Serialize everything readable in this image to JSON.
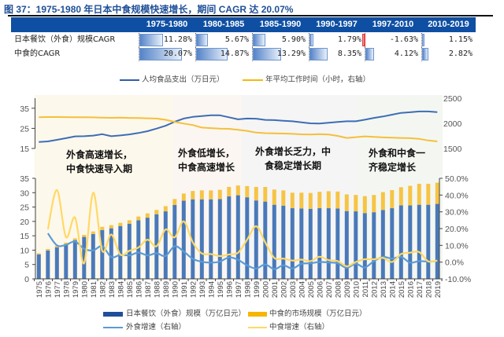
{
  "title": "图 37：1975-1980 年日本中食规模快速增长，期间 CAGR 达 20.07%",
  "table": {
    "columns": [
      "1975-1980",
      "1980-1985",
      "1985-1990",
      "1990-1997",
      "1997-2010",
      "2010-2019"
    ],
    "rows": [
      {
        "label": "日本餐饮（外食）规模CAGR",
        "values": [
          11.28,
          5.67,
          5.9,
          1.79,
          -1.63,
          1.15
        ],
        "display": [
          "11.28%",
          "5.67%",
          "5.90%",
          "1.79%",
          "-1.63%",
          "1.15%"
        ]
      },
      {
        "label": "中食的CAGR",
        "values": [
          20.07,
          14.87,
          13.29,
          8.35,
          4.12,
          2.82
        ],
        "display": [
          "20.07%",
          "14.87%",
          "13.29%",
          "8.35%",
          "4.12%",
          "2.82%"
        ]
      }
    ],
    "colors": {
      "header_bg": "#0f4fa3",
      "positive_bar": "#5584c8",
      "negative_bar": "#e8302f"
    }
  },
  "phases": [
    {
      "start_year": 1974.5,
      "end_year": 1989.8,
      "color": "#fdf8ec",
      "lines": [
        "外食高速增长，",
        "中食快速导入期"
      ]
    },
    {
      "start_year": 1989.8,
      "end_year": 1997.4,
      "color": "#fbf6f1",
      "lines": [
        "外食低增长，",
        "中食高速增长"
      ]
    },
    {
      "start_year": 1997.4,
      "end_year": 2010.0,
      "color": "#f5f5f5",
      "lines": [
        "外食增长乏力，中",
        "食稳定增长期"
      ]
    },
    {
      "start_year": 2010.0,
      "end_year": 2019.6,
      "color": "#f4f7f1",
      "lines": [
        "外食和中食一",
        "齐稳定增长"
      ]
    }
  ],
  "chart_data": [
    {
      "type": "line",
      "title": "",
      "legend": "top",
      "x": [
        1975,
        1976,
        1977,
        1978,
        1979,
        1980,
        1981,
        1982,
        1983,
        1984,
        1985,
        1986,
        1987,
        1988,
        1989,
        1990,
        1991,
        1992,
        1993,
        1994,
        1995,
        1996,
        1997,
        1998,
        1999,
        2000,
        2001,
        2002,
        2003,
        2004,
        2005,
        2006,
        2007,
        2008,
        2009,
        2010,
        2011,
        2012,
        2013,
        2014,
        2015,
        2016,
        2017,
        2018,
        2019
      ],
      "y_left": {
        "range": [
          15,
          40
        ],
        "ticks": [
          15,
          25,
          35
        ]
      },
      "y_right": {
        "range": [
          1500,
          2500
        ],
        "ticks": [
          1500,
          2000,
          2500
        ]
      },
      "grid": false,
      "series": [
        {
          "key": "food-expenditure",
          "name": "人均食品支出（万日元）",
          "axis": "left",
          "color": "#3d6db5",
          "values": [
            18.2,
            18.5,
            19.3,
            20.1,
            21.0,
            21.1,
            21.4,
            22.1,
            21.1,
            21.5,
            22.0,
            22.7,
            23.6,
            24.9,
            26.3,
            28.3,
            29.9,
            30.7,
            31.1,
            31.5,
            31.5,
            30.5,
            29.5,
            29.9,
            29.8,
            29.2,
            29.1,
            28.8,
            28.5,
            28.0,
            27.5,
            27.4,
            27.8,
            28.2,
            28.5,
            28.5,
            29.3,
            30.2,
            30.9,
            31.8,
            32.7,
            33.0,
            33.4,
            33.4,
            33.1
          ]
        },
        {
          "key": "working-hours",
          "name": "年平均工作时间（小时，右轴）",
          "axis": "right",
          "color": "#f5bf3c",
          "values": [
            2120,
            2125,
            2125,
            2123,
            2120,
            2122,
            2118,
            2112,
            2110,
            2113,
            2108,
            2105,
            2100,
            2095,
            2070,
            2030,
            1995,
            1965,
            1915,
            1905,
            1895,
            1890,
            1870,
            1850,
            1815,
            1805,
            1800,
            1797,
            1790,
            1782,
            1776,
            1786,
            1778,
            1750,
            1710,
            1725,
            1740,
            1730,
            1720,
            1714,
            1710,
            1705,
            1690,
            1660,
            1640
          ]
        }
      ]
    },
    {
      "type": "bar+line",
      "title": "",
      "legend": "bottom",
      "categories": [
        "1975",
        "1976",
        "1977",
        "1978",
        "1979",
        "1980",
        "1981",
        "1982",
        "1983",
        "1984",
        "1985",
        "1986",
        "1987",
        "1988",
        "1989",
        "1990",
        "1991",
        "1992",
        "1993",
        "1994",
        "1995",
        "1996",
        "1997",
        "1998",
        "1999",
        "2000",
        "2001",
        "2002",
        "2003",
        "2004",
        "2005",
        "2006",
        "2007",
        "2008",
        "2009",
        "2010",
        "2011",
        "2012",
        "2013",
        "2014",
        "2015",
        "2016",
        "2017",
        "2018",
        "2019"
      ],
      "y_left": {
        "range": [
          0,
          35
        ],
        "ticks": [
          0,
          5,
          10,
          15,
          20,
          25,
          30,
          35
        ]
      },
      "y_right": {
        "range": [
          -10,
          50
        ],
        "ticks": [
          -10,
          0,
          10,
          20,
          30,
          40,
          50
        ],
        "tick_labels": [
          "-10.0%",
          "0.0%",
          "10.0%",
          "20.0%",
          "30.0%",
          "40.0%",
          "50.0%"
        ]
      },
      "grid": false,
      "series": [
        {
          "key": "outside-food-size",
          "name": "日本餐饮（外食）规模（万亿日元）",
          "type": "bar",
          "stack": "total",
          "axis": "left",
          "color": "#4a79b9",
          "values": [
            8.5,
            9.9,
            11.0,
            12.1,
            13.5,
            14.6,
            15.6,
            17.0,
            17.6,
            18.4,
            19.2,
            20.4,
            21.3,
            22.5,
            23.5,
            25.7,
            27.2,
            27.7,
            27.7,
            27.7,
            27.8,
            28.7,
            29.1,
            28.4,
            27.3,
            26.9,
            25.8,
            25.5,
            24.6,
            24.5,
            24.4,
            24.6,
            24.6,
            24.5,
            23.6,
            23.5,
            22.9,
            23.2,
            24.0,
            24.6,
            25.6,
            25.6,
            25.8,
            25.8,
            26.1
          ]
        },
        {
          "key": "nakashoku-size",
          "name": "中食的市场规模（万亿日元）",
          "type": "bar",
          "stack": "total",
          "axis": "left",
          "color": "#f6c445",
          "values": [
            0.4,
            0.5,
            0.5,
            0.5,
            0.6,
            0.7,
            0.9,
            1.1,
            1.1,
            1.1,
            1.2,
            1.3,
            1.5,
            1.5,
            1.8,
            2.1,
            2.5,
            2.9,
            3.1,
            3.1,
            3.2,
            3.3,
            3.4,
            3.9,
            4.7,
            5.1,
            5.3,
            5.3,
            5.4,
            5.5,
            5.5,
            5.7,
            5.9,
            5.9,
            5.8,
            5.7,
            5.9,
            6.0,
            6.2,
            6.3,
            6.3,
            6.8,
            7.3,
            7.3,
            7.4
          ]
        },
        {
          "key": "outside-food-growth",
          "name": "外食增速（右轴）",
          "type": "line",
          "axis": "right",
          "color": "#5b9bd5",
          "values": [
            null,
            17.2,
            10.0,
            10.3,
            12.3,
            8.0,
            7.0,
            9.5,
            3.0,
            4.3,
            4.0,
            5.7,
            4.0,
            5.3,
            3.7,
            9.5,
            6.3,
            2.0,
            0.2,
            -0.3,
            0.3,
            2.8,
            1.4,
            -1.9,
            -3.8,
            -1.4,
            -4.2,
            -1.9,
            -3.8,
            -1.0,
            -0.7,
            0.1,
            -0.2,
            -0.7,
            -3.4,
            -1.0,
            -3.2,
            0.6,
            3.1,
            2.1,
            3.1,
            -0.3,
            0.6,
            0.3,
            0.6
          ]
        },
        {
          "key": "nakashoku-growth",
          "name": "中食增速（右轴）",
          "type": "line",
          "axis": "right",
          "color": "#ffd966",
          "values": [
            null,
            19.6,
            43.0,
            14.9,
            26.6,
            -0.7,
            41.4,
            6.8,
            16.5,
            4.5,
            6.8,
            8.7,
            13.4,
            9.5,
            19.5,
            14.8,
            24.3,
            11.8,
            5.2,
            4.8,
            3.6,
            4.6,
            5.6,
            13.4,
            21.4,
            11.8,
            2.5,
            2.1,
            0.9,
            1.5,
            0.6,
            3.2,
            1.2,
            0.6,
            -2.5,
            0.1,
            1.7,
            1.7,
            2.5,
            0.1,
            4.8,
            5.6,
            6.0,
            0.4,
            0.9
          ]
        }
      ]
    }
  ]
}
